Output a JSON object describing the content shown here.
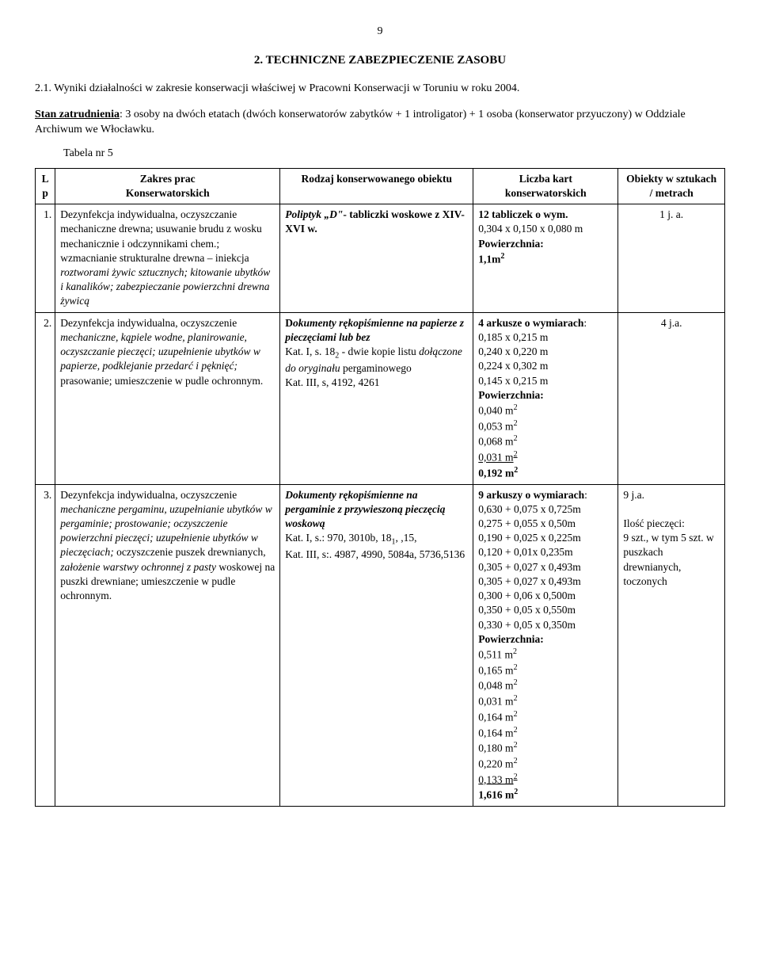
{
  "page_number": "9",
  "section_heading": "2. TECHNICZNE ZABEZPIECZENIE ZASOBU",
  "subsection_heading": "2.1. Wyniki działalności w zakresie konserwacji właściwej w Pracowni Konserwacji  w Toruniu w roku 2004.",
  "stan_label": "Stan zatrudnienia",
  "stan_text": ": 3 osoby na dwóch etatach (dwóch konserwatorów zabytków + 1 introligator) + 1 osoba (konserwator przyuczony) w Oddziale Archiwum we Włocławku.",
  "tabela_label": "Tabela nr 5",
  "header": {
    "lp": "L\np",
    "zakres": "Zakres prac\nKonserwatorskich",
    "rodzaj": "Rodzaj konserwowanego obiektu",
    "liczba": "Liczba kart\nkonserwatorskich",
    "obiekty": "Obiekty w sztukach\n/ metrach"
  },
  "rows": [
    {
      "lp": "1.",
      "zakres_plain1": "Dezynfekcja indywidualna, oczyszczanie mechaniczne drewna; usuwanie brudu z wosku mechanicznie i odczynnikami chem.; wzmacnianie strukturalne drewna – iniekcja ",
      "zakres_italic1": "roztworami żywic sztucznych; kitowanie ubytków i kanalików;  zabezpieczanie powierzchni drewna żywicą",
      "rodzaj_bolditalic": "Poliptyk „D\"",
      "rodzaj_bold": "- tabliczki woskowe z XIV-XVI w.",
      "liczba_bold1": "12 tabliczek o wym.",
      "liczba_plain1": "0,304 x 0,150 x 0,080 m",
      "liczba_bold2": "Powierzchnia:",
      "liczba_bold3": "1,1m",
      "liczba_sup1": "2",
      "obiekty": "1 j. a."
    },
    {
      "lp": "2.",
      "zakres_plain1": "Dezynfekcja indywidualna, oczyszczenie ",
      "zakres_italic1": "mechaniczne, kąpiele wodne, planirowanie,  oczyszczanie pieczęci; uzupełnienie ubytków w papierze, podklejanie przedarć i pęknięć;",
      "zakres_plain2": " prasowanie; umieszczenie w pudle ochronnym.",
      "rodzaj_bold1": "D",
      "rodzaj_bolditalic1": "okumenty rękopiśmienne na papierze z pieczęciami lub bez",
      "rodzaj_plain1": "Kat. I, s. 18",
      "rodzaj_sub1": "2",
      "rodzaj_plain2": " - dwie kopie listu ",
      "rodzaj_italic1": "dołączone do oryginału",
      "rodzaj_plain3": " pergaminowego",
      "rodzaj_plain4": "Kat. III, s, 4192, 4261",
      "liczba_bold1": "4 arkusze o wymiarach",
      "liczba_plain1": "0,185 x 0,215 m",
      "liczba_plain2": "0,240 x 0,220 m",
      "liczba_plain3": "0,224 x 0,302 m",
      "liczba_plain4": "0,145 x 0,215 m",
      "liczba_bold2": "Powierzchnia:",
      "liczba_plain5": "0,040 m",
      "liczba_plain6": "0,053 m",
      "liczba_plain7": "0,068 m",
      "liczba_plain8": "0,031 m",
      "liczba_bold3": "0,192 m",
      "liczba_sup": "2",
      "obiekty": "4 j.a."
    },
    {
      "lp": "3.",
      "zakres_plain1": "Dezynfekcja indywidualna, oczyszczenie ",
      "zakres_italic1": "mechaniczne pergaminu, uzupełnianie ubytków w pergaminie; prostowanie; oczyszczenie powierzchni pieczęci; uzupełnienie ubytków w pieczęciach;",
      "zakres_plain2": " oczyszczenie puszek drewnianych, ",
      "zakres_italic2": "założenie warstwy ochronnej z pasty",
      "zakres_plain3": " woskowej na puszki drewniane; umieszczenie w pudle ochronnym.",
      "rodzaj_bolditalic1": "Dokumenty rękopiśmienne na pergaminie z przywieszoną pieczęcią woskową",
      "rodzaj_plain1": "Kat. I,  s.:  970, 3010b, 18",
      "rodzaj_sub1": "1",
      "rodzaj_plain2": ", ,15,",
      "rodzaj_plain3": "Kat. III, s:. 4987, 4990, 5084a, 5736,5136",
      "liczba_bold1": "9 arkuszy o wymiarach",
      "liczba_lines": [
        "0,630 + 0,075 x 0,725m",
        "0,275 + 0,055 x 0,50m",
        "0,190 + 0,025 x 0,225m",
        "0,120 + 0,01x 0,235m",
        "0,305 + 0,027 x 0,493m",
        "0,305 + 0,027 x 0,493m",
        "0,300 + 0,06 x 0,500m",
        "0,350 + 0,05 x 0,550m",
        "0,330 + 0,05 x 0,350m"
      ],
      "liczba_bold2": "Powierzchnia:",
      "liczba_m2": [
        "0,511 m",
        "0,165 m",
        "0,048 m",
        "0,031 m",
        "0,164 m",
        "0,164 m",
        "0,180 m",
        "0,220 m"
      ],
      "liczba_m2_underline": "0,133 m",
      "liczba_bold3": "1,616 m",
      "liczba_sup": "2",
      "obiekty_line1": "9 j.a.",
      "obiekty_line2": "Ilość pieczęci:",
      "obiekty_line3": "9  szt., w tym 5 szt. w puszkach drewnianych, toczonych"
    }
  ]
}
